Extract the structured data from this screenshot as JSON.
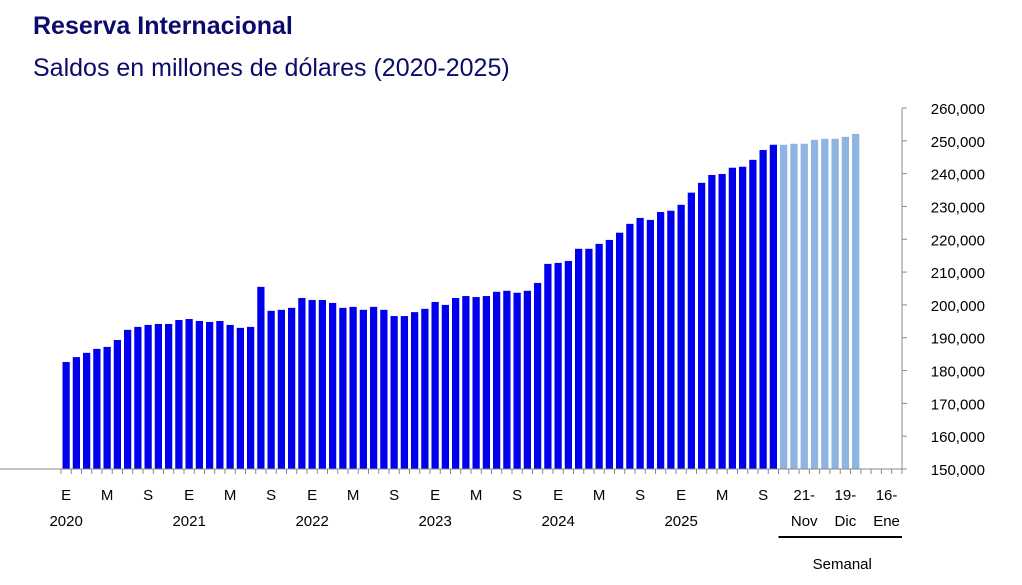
{
  "chart_data": {
    "type": "bar",
    "title": "Reserva Internacional",
    "subtitle": "Saldos en millones de dólares (2020-2025)",
    "ylabel": "",
    "xlabel": "",
    "ylim": [
      150000,
      260000
    ],
    "y_ticks": [
      "150,000",
      "160,000",
      "170,000",
      "180,000",
      "190,000",
      "200,000",
      "210,000",
      "220,000",
      "230,000",
      "240,000",
      "250,000",
      "260,000"
    ],
    "y_tick_values": [
      150000,
      160000,
      170000,
      180000,
      190000,
      200000,
      210000,
      220000,
      230000,
      240000,
      250000,
      260000
    ],
    "grid": false,
    "colors": {
      "monthly": "#0000EE",
      "weekly": "#8DB4E2",
      "title": "#0B0B6B"
    },
    "monthly": {
      "month_labels": [
        "E",
        "M",
        "S"
      ],
      "years": [
        "2020",
        "2021",
        "2022",
        "2023",
        "2024",
        "2025"
      ],
      "values": [
        182600,
        184100,
        185400,
        186600,
        187200,
        189300,
        192400,
        193300,
        193900,
        194200,
        194200,
        195400,
        195700,
        195100,
        194800,
        195100,
        193900,
        193000,
        193300,
        205500,
        198200,
        198500,
        199100,
        202100,
        201500,
        201500,
        200600,
        199100,
        199400,
        198500,
        199400,
        198500,
        196600,
        196600,
        197800,
        198800,
        200900,
        200000,
        202100,
        202700,
        202400,
        202700,
        204000,
        204300,
        203700,
        204300,
        206700,
        212500,
        212800,
        213400,
        217100,
        217100,
        218600,
        219800,
        222000,
        224700,
        226500,
        225900,
        228300,
        228700,
        230500,
        234200,
        237200,
        239600,
        239900,
        241800,
        242100,
        244200,
        247200,
        248800
      ]
    },
    "weekly": {
      "label": "Semanal",
      "slots": 12,
      "tick_labels": [
        {
          "slot": 2,
          "top": "21-",
          "bottom": "Nov"
        },
        {
          "slot": 6,
          "top": "19-",
          "bottom": "Dic"
        },
        {
          "slot": 10,
          "top": "16-",
          "bottom": "Ene"
        }
      ],
      "values": [
        248800,
        249100,
        249100,
        250300,
        250600,
        250600,
        251200,
        252100
      ]
    }
  }
}
